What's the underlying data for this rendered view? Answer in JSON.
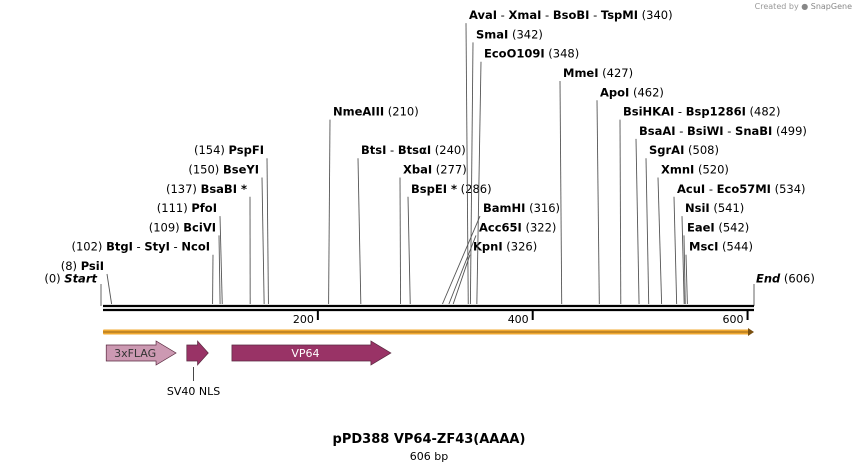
{
  "credit": {
    "prefix": "Created by",
    "brand": "SnapGene"
  },
  "plasmid": {
    "name": "pPD388 VP64-ZF43(AAAA)",
    "length": "606 bp"
  },
  "axis": {
    "start": 0,
    "end": 606,
    "ticks": [
      200,
      400,
      600
    ]
  },
  "markers": [
    {
      "text": "Start",
      "pos": 0,
      "pos_label": "(0)"
    },
    {
      "text": "End",
      "pos": 606,
      "pos_label": "(606)"
    }
  ],
  "sites": [
    {
      "label": "PsiI",
      "pos": 8,
      "pos_label": "(8)"
    },
    {
      "label": "BtgI  -  StyI  -  NcoI",
      "pos": 102,
      "pos_label": "(102)"
    },
    {
      "label": "BciVI",
      "pos": 109,
      "pos_label": "(109)"
    },
    {
      "label": "PfoI",
      "pos": 111,
      "pos_label": "(111)"
    },
    {
      "label": "BsaBI *",
      "pos": 137,
      "pos_label": "(137)"
    },
    {
      "label": "BseYI",
      "pos": 150,
      "pos_label": "(150)"
    },
    {
      "label": "PspFI",
      "pos": 154,
      "pos_label": "(154)"
    },
    {
      "label": "NmeAIII",
      "pos": 210,
      "pos_label": "(210)"
    },
    {
      "label": "BtsI  -  BtsαI",
      "pos": 240,
      "pos_label": "(240)"
    },
    {
      "label": "XbaI",
      "pos": 277,
      "pos_label": "(277)"
    },
    {
      "label": "BspEI *",
      "pos": 286,
      "pos_label": "(286)"
    },
    {
      "label": "BamHI",
      "pos": 316,
      "pos_label": "(316)"
    },
    {
      "label": "Acc65I",
      "pos": 322,
      "pos_label": "(322)"
    },
    {
      "label": "KpnI",
      "pos": 326,
      "pos_label": "(326)"
    },
    {
      "label": "AvaI  -  XmaI  -  BsoBI  -  TspMI",
      "pos": 340,
      "pos_label": "(340)"
    },
    {
      "label": "SmaI",
      "pos": 342,
      "pos_label": "(342)"
    },
    {
      "label": "EcoO109I",
      "pos": 348,
      "pos_label": "(348)"
    },
    {
      "label": "MmeI",
      "pos": 427,
      "pos_label": "(427)"
    },
    {
      "label": "ApoI",
      "pos": 462,
      "pos_label": "(462)"
    },
    {
      "label": "BsiHKAI  -  Bsp1286I",
      "pos": 482,
      "pos_label": "(482)"
    },
    {
      "label": "BsaAI  -  BsiWI  -  SnaBI",
      "pos": 499,
      "pos_label": "(499)"
    },
    {
      "label": "SgrAI",
      "pos": 508,
      "pos_label": "(508)"
    },
    {
      "label": "XmnI",
      "pos": 520,
      "pos_label": "(520)"
    },
    {
      "label": "AcuI  -  Eco57MI",
      "pos": 534,
      "pos_label": "(534)"
    },
    {
      "label": "NsiI",
      "pos": 541,
      "pos_label": "(541)"
    },
    {
      "label": "EaeI",
      "pos": 542,
      "pos_label": "(542)"
    },
    {
      "label": "MscI",
      "pos": 544,
      "pos_label": "(544)"
    }
  ],
  "features": [
    {
      "name": "3xFLAG",
      "start": 3,
      "end": 68,
      "color": "#cc99b2",
      "label_inside": true
    },
    {
      "name": "SV40 NLS",
      "start": 78,
      "end": 98,
      "color": "#993366",
      "label_inside": false
    },
    {
      "name": "VP64",
      "start": 120,
      "end": 268,
      "color": "#993366",
      "label_inside": true
    }
  ],
  "colors": {
    "backbone": "#000000",
    "orf": "#f0a830"
  }
}
